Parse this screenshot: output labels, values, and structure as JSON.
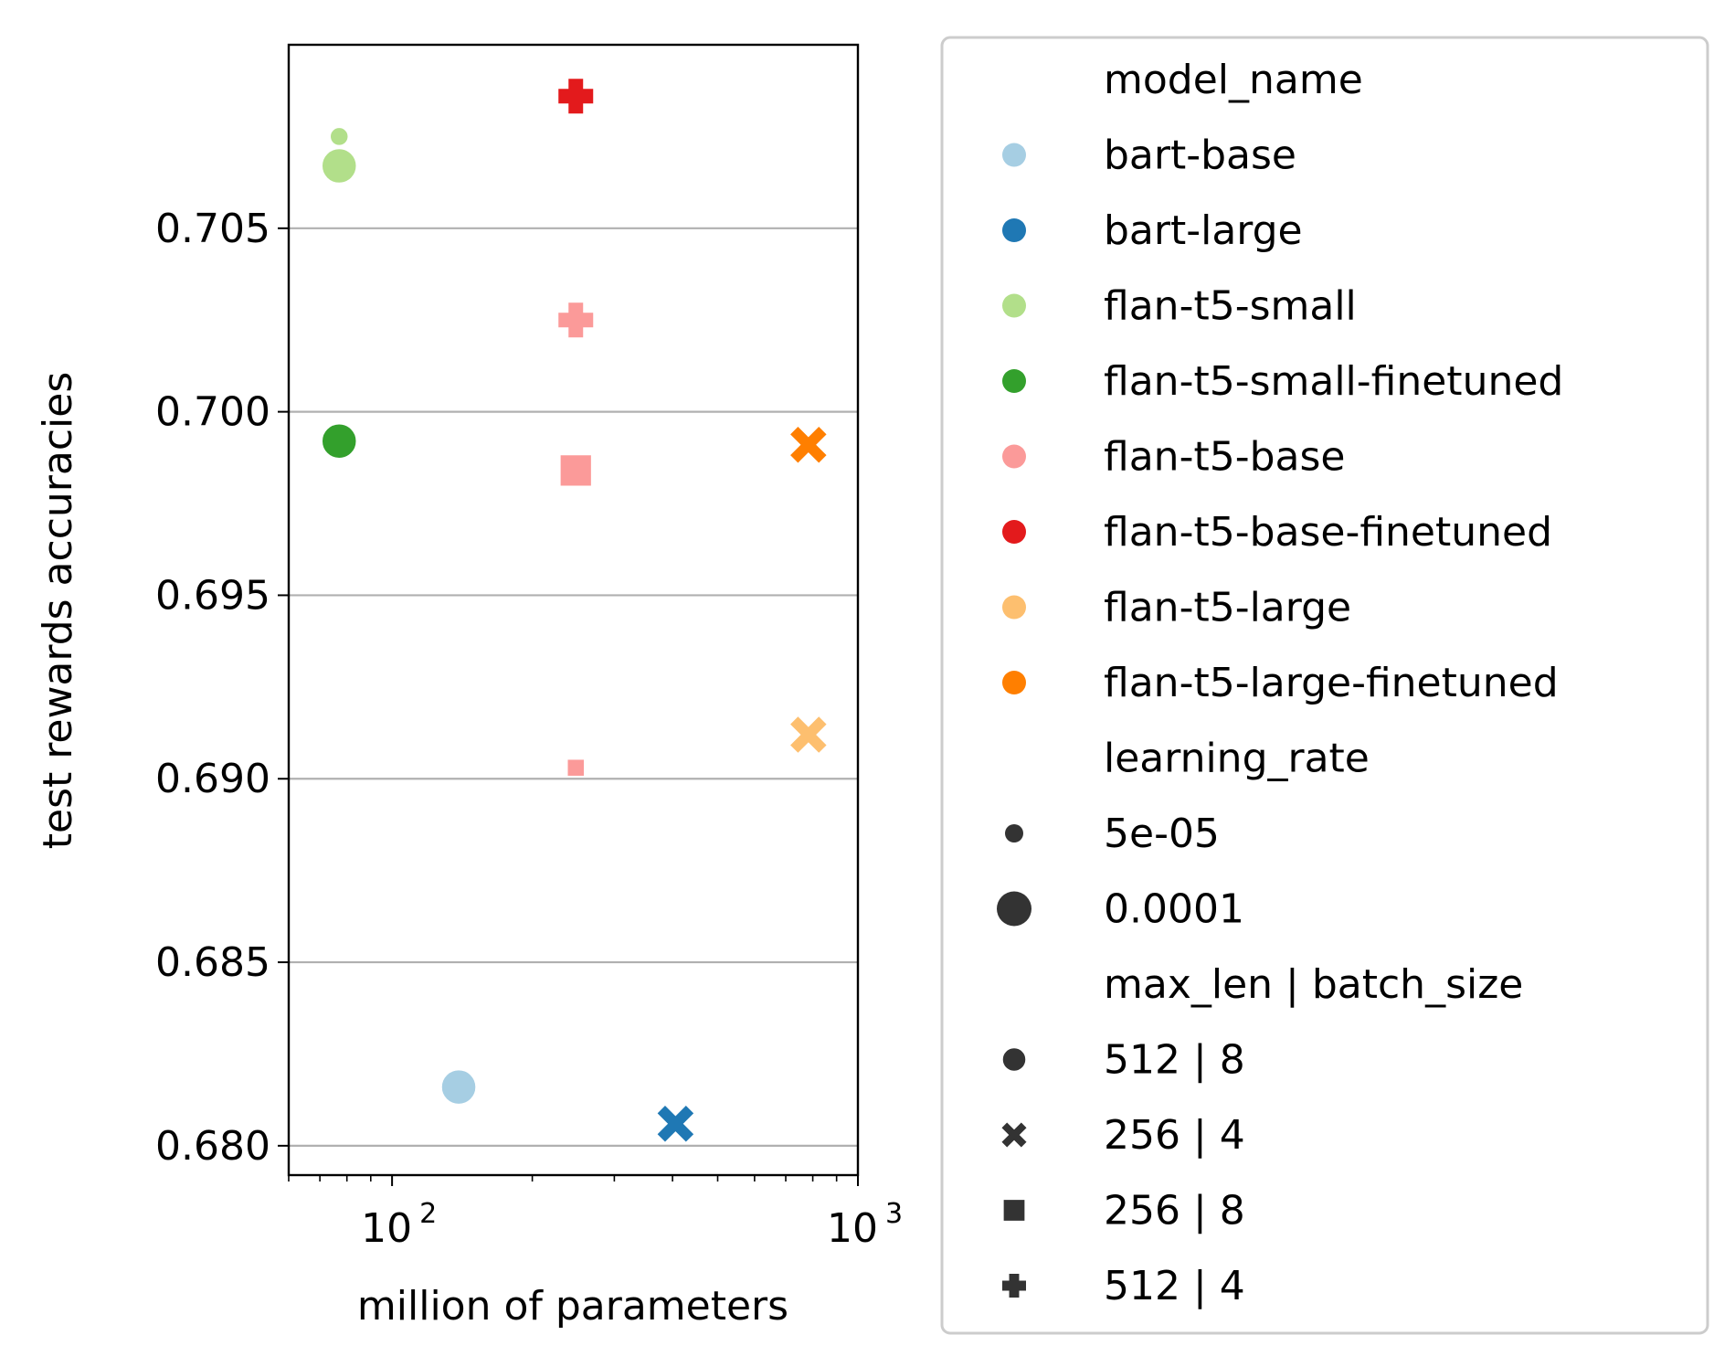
{
  "chart_data": {
    "type": "scatter",
    "title": "",
    "xlabel": "million of parameters",
    "ylabel": "test rewards accuracies",
    "xscale": "log",
    "xlim": [
      60,
      1000
    ],
    "ylim": [
      0.6792,
      0.71
    ],
    "x_ticks": [
      {
        "value": 100,
        "base": "10",
        "exp": "2"
      },
      {
        "value": 1000,
        "base": "10",
        "exp": "3"
      }
    ],
    "y_ticks": [
      {
        "value": 0.68,
        "label": "0.680"
      },
      {
        "value": 0.685,
        "label": "0.685"
      },
      {
        "value": 0.69,
        "label": "0.690"
      },
      {
        "value": 0.695,
        "label": "0.695"
      },
      {
        "value": 0.7,
        "label": "0.700"
      },
      {
        "value": 0.705,
        "label": "0.705"
      }
    ],
    "grid": "horizontal",
    "legend_position": "outside-right",
    "series": [
      {
        "name": "bart-base",
        "color": "#a6cee3",
        "points": [
          {
            "x": 139,
            "y": 0.6816,
            "learning_rate": "0.0001",
            "max_len_batch_size": "512 | 8"
          }
        ]
      },
      {
        "name": "bart-large",
        "color": "#1f78b4",
        "points": [
          {
            "x": 406,
            "y": 0.6806,
            "learning_rate": "0.0001",
            "max_len_batch_size": "256 | 4"
          }
        ]
      },
      {
        "name": "flan-t5-small",
        "color": "#b2df8a",
        "points": [
          {
            "x": 77,
            "y": 0.7075,
            "learning_rate": "5e-05",
            "max_len_batch_size": "512 | 8"
          },
          {
            "x": 77,
            "y": 0.7067,
            "learning_rate": "0.0001",
            "max_len_batch_size": "512 | 8"
          }
        ]
      },
      {
        "name": "flan-t5-small-finetuned",
        "color": "#33a02c",
        "points": [
          {
            "x": 77,
            "y": 0.6992,
            "learning_rate": "0.0001",
            "max_len_batch_size": "512 | 8"
          }
        ]
      },
      {
        "name": "flan-t5-base",
        "color": "#fb9a99",
        "points": [
          {
            "x": 248,
            "y": 0.7025,
            "learning_rate": "0.0001",
            "max_len_batch_size": "512 | 4"
          },
          {
            "x": 248,
            "y": 0.6984,
            "learning_rate": "0.0001",
            "max_len_batch_size": "256 | 8"
          },
          {
            "x": 248,
            "y": 0.6903,
            "learning_rate": "5e-05",
            "max_len_batch_size": "256 | 8"
          }
        ]
      },
      {
        "name": "flan-t5-base-finetuned",
        "color": "#e31a1c",
        "points": [
          {
            "x": 248,
            "y": 0.7086,
            "learning_rate": "0.0001",
            "max_len_batch_size": "512 | 4"
          }
        ]
      },
      {
        "name": "flan-t5-large",
        "color": "#fdbf6f",
        "points": [
          {
            "x": 783,
            "y": 0.6912,
            "learning_rate": "0.0001",
            "max_len_batch_size": "256 | 4"
          }
        ]
      },
      {
        "name": "flan-t5-large-finetuned",
        "color": "#ff7f00",
        "points": [
          {
            "x": 783,
            "y": 0.6991,
            "learning_rate": "0.0001",
            "max_len_batch_size": "256 | 4"
          }
        ]
      }
    ],
    "legend": {
      "hue_title": "model_name",
      "hue_entries": [
        {
          "label": "bart-base",
          "color": "#a6cee3"
        },
        {
          "label": "bart-large",
          "color": "#1f78b4"
        },
        {
          "label": "flan-t5-small",
          "color": "#b2df8a"
        },
        {
          "label": "flan-t5-small-finetuned",
          "color": "#33a02c"
        },
        {
          "label": "flan-t5-base",
          "color": "#fb9a99"
        },
        {
          "label": "flan-t5-base-finetuned",
          "color": "#e31a1c"
        },
        {
          "label": "flan-t5-large",
          "color": "#fdbf6f"
        },
        {
          "label": "flan-t5-large-finetuned",
          "color": "#ff7f00"
        }
      ],
      "size_title": "learning_rate",
      "size_entries": [
        {
          "label": "5e-05",
          "size": "small"
        },
        {
          "label": "0.0001",
          "size": "large"
        }
      ],
      "style_title": "max_len | batch_size",
      "style_entries": [
        {
          "label": "512 | 8",
          "marker": "circle"
        },
        {
          "label": "256 | 4",
          "marker": "x"
        },
        {
          "label": "256 | 8",
          "marker": "square"
        },
        {
          "label": "512 | 4",
          "marker": "plus"
        }
      ],
      "neutral_color": "#333333"
    }
  }
}
